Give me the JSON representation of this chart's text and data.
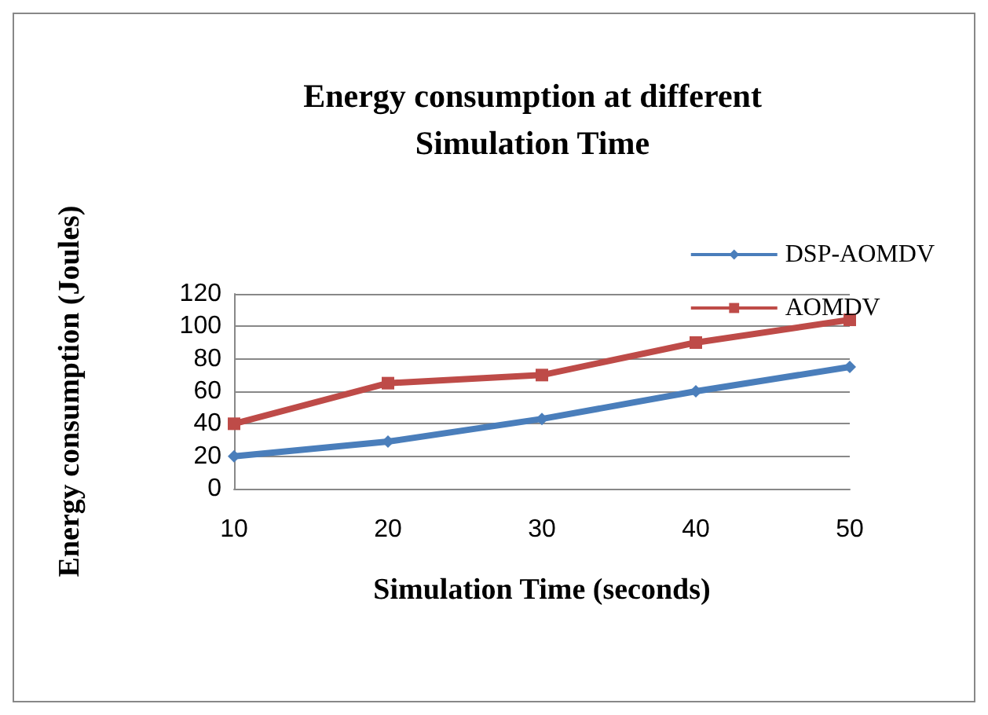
{
  "chart_data": {
    "type": "line",
    "title": "Energy consumption at different\nSimulation Time",
    "xlabel": "Simulation Time (seconds)",
    "ylabel": "Energy consumption (Joules)",
    "categories": [
      "10",
      "20",
      "30",
      "40",
      "50"
    ],
    "series": [
      {
        "name": "DSP-AOMDV",
        "color": "#4a7ebb",
        "marker": "diamond",
        "values": [
          20,
          29,
          43,
          60,
          75
        ]
      },
      {
        "name": "AOMDV",
        "color": "#be4b48",
        "marker": "square",
        "values": [
          40,
          65,
          70,
          90,
          104
        ]
      }
    ],
    "ylim": [
      0,
      120
    ],
    "yticks": [
      0,
      20,
      40,
      60,
      80,
      100,
      120
    ],
    "grid": "y",
    "legend": "top right"
  }
}
